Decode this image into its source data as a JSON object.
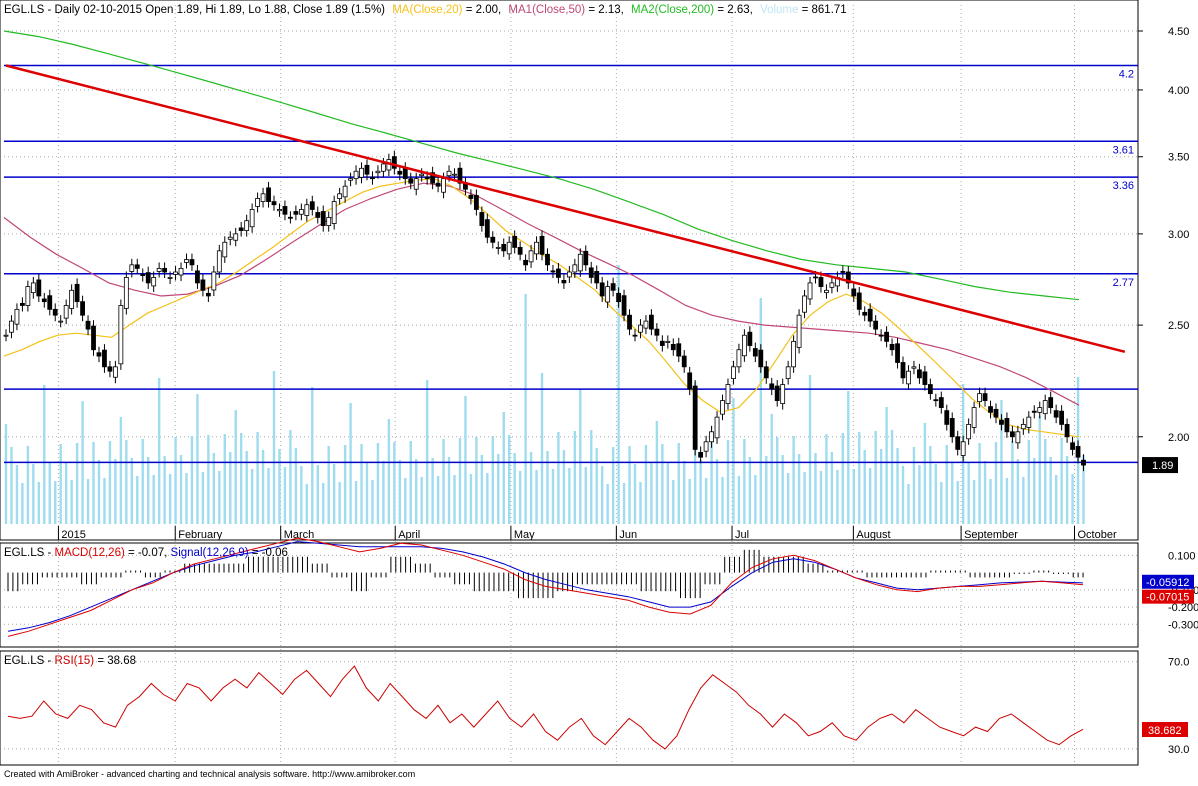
{
  "price_header": {
    "base": "EGL.LS - Daily 02-10-2015 Open 1.89, Hi 1.89, Lo 1.88, Close 1.89 (1.5%)",
    "ma20_label": "MA(Close,20)",
    "ma20_value": " = 2.00,",
    "ma50_label": "MA1(Close,50)",
    "ma50_value": " = 2.13,",
    "ma200_label": "MA2(Close,200)",
    "ma200_value": " = 2.63,",
    "volume_label": "Volume",
    "volume_value": " = 861.71"
  },
  "macd_header": {
    "base": "EGL.LS - ",
    "macd_label": "MACD(12,26)",
    "macd_value": " = -0.07, ",
    "signal_label": "Signal(12,26,9)",
    "signal_value": " = -0.06"
  },
  "rsi_header": {
    "base": "EGL.LS - ",
    "rsi_label": "RSI(15)",
    "rsi_value": " = 38.68"
  },
  "footer": "Created with AmiBroker - advanced charting and technical analysis software. http://www.amibroker.com",
  "month_labels": [
    "2015",
    "February",
    "March",
    "April",
    "May",
    "Jun",
    "Jul",
    "August",
    "September",
    "October"
  ],
  "price_axis_ticks": [
    "4.50",
    "4.00",
    "3.50",
    "3.00",
    "2.50",
    "2.00"
  ],
  "price_marker": "1.89",
  "hline_labels": [
    "4.2",
    "3.61",
    "3.36",
    "2.77"
  ],
  "macd_axis_ticks": [
    "0.100",
    "-0.100",
    "-0.200",
    "-0.300"
  ],
  "macd_markers": [
    "-0.05912",
    "-0.07015"
  ],
  "rsi_axis_ticks": [
    "70.0",
    "30.0"
  ],
  "rsi_marker": "38.682",
  "colors": {
    "candle": "#000000",
    "ma20": "#f5c018",
    "ma50": "#c04878",
    "ma200": "#22bb22",
    "volume": "#9fdcef",
    "hline": "#0000cc",
    "trendline": "#dd0000",
    "macd": "#dd0000",
    "signal": "#0000cc",
    "rsi": "#cc0000",
    "grid": "#aaaaaa",
    "marker_blue": "#0000cc",
    "marker_red": "#dd0000"
  },
  "chart_data": [
    {
      "type": "candlestick",
      "title": "EGL.LS - Daily 02-10-2015",
      "x_labels": [
        "2015",
        "February",
        "March",
        "April",
        "May",
        "Jun",
        "Jul",
        "August",
        "September",
        "October"
      ],
      "ylim": [
        1.68,
        4.6
      ],
      "y_ticks": [
        2.0,
        2.5,
        3.0,
        3.5,
        4.0,
        4.5
      ],
      "scale": "log",
      "grid": true,
      "horizontal_lines": [
        4.2,
        3.61,
        3.36,
        2.77,
        2.2,
        1.9
      ],
      "trendline": [
        {
          "x": 0,
          "y": 4.2
        },
        {
          "x": 200,
          "y": 2.37
        }
      ],
      "ohlc_close_approx": [
        2.45,
        2.52,
        2.58,
        2.6,
        2.7,
        2.72,
        2.65,
        2.62,
        2.58,
        2.55,
        2.52,
        2.6,
        2.68,
        2.62,
        2.55,
        2.48,
        2.38,
        2.35,
        2.3,
        2.28,
        2.3,
        2.6,
        2.75,
        2.82,
        2.8,
        2.76,
        2.72,
        2.75,
        2.8,
        2.78,
        2.75,
        2.78,
        2.8,
        2.85,
        2.82,
        2.72,
        2.68,
        2.65,
        2.78,
        2.9,
        2.95,
        2.98,
        3.0,
        3.02,
        3.08,
        3.15,
        3.22,
        3.25,
        3.2,
        3.18,
        3.15,
        3.12,
        3.1,
        3.12,
        3.15,
        3.18,
        3.15,
        3.1,
        3.05,
        3.1,
        3.2,
        3.25,
        3.3,
        3.35,
        3.4,
        3.42,
        3.38,
        3.35,
        3.4,
        3.45,
        3.48,
        3.42,
        3.38,
        3.35,
        3.32,
        3.35,
        3.38,
        3.35,
        3.32,
        3.3,
        3.35,
        3.4,
        3.38,
        3.32,
        3.28,
        3.22,
        3.15,
        3.05,
        2.98,
        2.95,
        2.92,
        2.9,
        2.95,
        2.92,
        2.88,
        2.82,
        2.9,
        2.95,
        2.88,
        2.82,
        2.78,
        2.75,
        2.72,
        2.78,
        2.82,
        2.88,
        2.82,
        2.75,
        2.72,
        2.65,
        2.7,
        2.68,
        2.62,
        2.55,
        2.48,
        2.45,
        2.5,
        2.52,
        2.48,
        2.45,
        2.4,
        2.42,
        2.38,
        2.35,
        2.3,
        2.2,
        1.95,
        1.92,
        1.98,
        2.02,
        2.08,
        2.15,
        2.22,
        2.3,
        2.38,
        2.45,
        2.4,
        2.35,
        2.3,
        2.25,
        2.2,
        2.15,
        2.22,
        2.3,
        2.42,
        2.55,
        2.65,
        2.72,
        2.75,
        2.7,
        2.68,
        2.72,
        2.75,
        2.78,
        2.72,
        2.65,
        2.58,
        2.55,
        2.52,
        2.48,
        2.45,
        2.42,
        2.38,
        2.32,
        2.25,
        2.28,
        2.3,
        2.25,
        2.22,
        2.18,
        2.15,
        2.12,
        2.05,
        2.0,
        1.95,
        1.98,
        2.05,
        2.12,
        2.18,
        2.15,
        2.1,
        2.08,
        2.05,
        2.02,
        2.0,
        2.02,
        2.05,
        2.08,
        2.1,
        2.12,
        2.15,
        2.12,
        2.08,
        2.05,
        2.0,
        1.95,
        1.92,
        1.89
      ],
      "ma20_approx": [
        2.35,
        2.38,
        2.42,
        2.45,
        2.46,
        2.45,
        2.44,
        2.5,
        2.56,
        2.6,
        2.64,
        2.68,
        2.72,
        2.78,
        2.85,
        2.92,
        3.0,
        3.08,
        3.14,
        3.2,
        3.26,
        3.3,
        3.32,
        3.34,
        3.35,
        3.3,
        3.22,
        3.12,
        3.02,
        2.95,
        2.88,
        2.82,
        2.75,
        2.68,
        2.58,
        2.5,
        2.42,
        2.32,
        2.22,
        2.15,
        2.1,
        2.12,
        2.2,
        2.32,
        2.45,
        2.55,
        2.62,
        2.66,
        2.62,
        2.56,
        2.48,
        2.4,
        2.32,
        2.24,
        2.16,
        2.1,
        2.05,
        2.03,
        2.02,
        2.01,
        2.0
      ],
      "ma50_approx": [
        3.1,
        2.98,
        2.88,
        2.8,
        2.72,
        2.68,
        2.65,
        2.66,
        2.7,
        2.76,
        2.85,
        2.95,
        3.05,
        3.15,
        3.22,
        3.28,
        3.32,
        3.3,
        3.24,
        3.15,
        3.06,
        2.98,
        2.9,
        2.83,
        2.76,
        2.68,
        2.6,
        2.55,
        2.52,
        2.5,
        2.49,
        2.48,
        2.47,
        2.46,
        2.44,
        2.41,
        2.38,
        2.34,
        2.3,
        2.25,
        2.19,
        2.13
      ],
      "ma200_approx": [
        4.5,
        4.45,
        4.38,
        4.3,
        4.22,
        4.14,
        4.06,
        3.98,
        3.9,
        3.82,
        3.74,
        3.67,
        3.6,
        3.53,
        3.47,
        3.41,
        3.35,
        3.28,
        3.2,
        3.12,
        3.03,
        2.96,
        2.9,
        2.85,
        2.82,
        2.8,
        2.78,
        2.74,
        2.7,
        2.67,
        2.65,
        2.63
      ]
    },
    {
      "type": "line",
      "title": "MACD(12,26) / Signal(12,26,9)",
      "y_ticks": [
        0.1,
        -0.1,
        -0.2,
        -0.3
      ],
      "series": [
        {
          "name": "MACD(12,26)",
          "values": [
            -0.37,
            -0.34,
            -0.3,
            -0.26,
            -0.22,
            -0.16,
            -0.1,
            -0.06,
            0.0,
            0.05,
            0.08,
            0.11,
            0.14,
            0.17,
            0.2,
            0.18,
            0.15,
            0.12,
            0.14,
            0.17,
            0.16,
            0.13,
            0.1,
            0.06,
            0.02,
            -0.04,
            -0.08,
            -0.1,
            -0.12,
            -0.14,
            -0.16,
            -0.2,
            -0.23,
            -0.24,
            -0.19,
            -0.06,
            0.03,
            0.08,
            0.1,
            0.07,
            0.02,
            -0.03,
            -0.07,
            -0.1,
            -0.11,
            -0.09,
            -0.08,
            -0.08,
            -0.07,
            -0.06,
            -0.05,
            -0.06,
            -0.07
          ]
        },
        {
          "name": "Signal(12,26,9)",
          "values": [
            -0.34,
            -0.32,
            -0.29,
            -0.25,
            -0.2,
            -0.15,
            -0.1,
            -0.05,
            0.0,
            0.04,
            0.07,
            0.1,
            0.12,
            0.15,
            0.18,
            0.17,
            0.16,
            0.15,
            0.15,
            0.15,
            0.15,
            0.14,
            0.12,
            0.09,
            0.05,
            0.0,
            -0.04,
            -0.07,
            -0.1,
            -0.12,
            -0.14,
            -0.17,
            -0.2,
            -0.2,
            -0.17,
            -0.08,
            0.0,
            0.06,
            0.08,
            0.06,
            0.02,
            -0.03,
            -0.06,
            -0.09,
            -0.1,
            -0.09,
            -0.08,
            -0.07,
            -0.06,
            -0.055,
            -0.05,
            -0.055,
            -0.06
          ]
        }
      ]
    },
    {
      "type": "line",
      "title": "RSI(15)",
      "y_ticks": [
        70.0,
        30.0
      ],
      "series": [
        {
          "name": "RSI(15)",
          "values": [
            45,
            44,
            45,
            52,
            46,
            44,
            50,
            48,
            42,
            40,
            50,
            54,
            60,
            55,
            52,
            60,
            58,
            52,
            58,
            62,
            58,
            65,
            60,
            55,
            62,
            66,
            60,
            54,
            62,
            68,
            58,
            52,
            60,
            54,
            48,
            44,
            50,
            42,
            46,
            40,
            46,
            52,
            44,
            40,
            46,
            38,
            34,
            40,
            44,
            36,
            32,
            38,
            44,
            40,
            34,
            30,
            36,
            48,
            58,
            64,
            60,
            56,
            50,
            46,
            40,
            46,
            42,
            36,
            38,
            42,
            36,
            34,
            40,
            44,
            46,
            42,
            48,
            44,
            40,
            38,
            36,
            40,
            38,
            44,
            46,
            42,
            38,
            34,
            32,
            36,
            39
          ]
        }
      ]
    }
  ]
}
